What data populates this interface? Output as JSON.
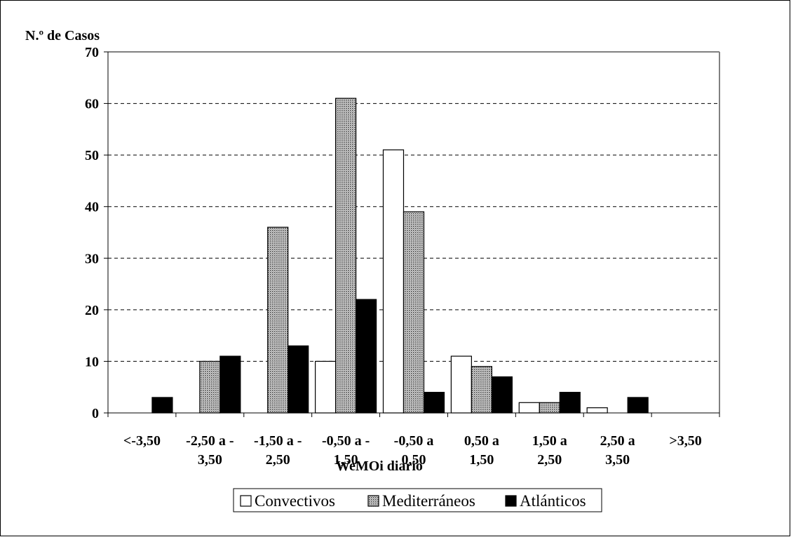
{
  "chart_data": {
    "type": "bar",
    "ylabel": "N.º de Casos",
    "xlabel": "WeMOi diario",
    "ylim": [
      0,
      70
    ],
    "yticks": [
      0,
      10,
      20,
      30,
      40,
      50,
      60,
      70
    ],
    "grid": true,
    "legend_position": "bottom",
    "categories": [
      "<-3,50",
      "-2,50 a - 3,50",
      "-1,50 a - 2,50",
      "-0,50 a - 1,50",
      "-0,50 a 0,50",
      "0,50 a 1,50",
      "1,50 a 2,50",
      "2,50 a 3,50",
      ">3,50"
    ],
    "category_lines": [
      [
        "<-3,50"
      ],
      [
        "-2,50 a -",
        "3,50"
      ],
      [
        "-1,50 a -",
        "2,50"
      ],
      [
        "-0,50 a -",
        "1,50"
      ],
      [
        "-0,50 a",
        "0,50"
      ],
      [
        "0,50 a",
        "1,50"
      ],
      [
        "1,50 a",
        "2,50"
      ],
      [
        "2,50 a",
        "3,50"
      ],
      [
        ">3,50"
      ]
    ],
    "series": [
      {
        "name": "Convectivos",
        "color": "#ffffff",
        "pattern": "none",
        "values": [
          0,
          0,
          0,
          10,
          51,
          11,
          2,
          1,
          0
        ]
      },
      {
        "name": "Mediterráneos",
        "color": "#8c8c8c",
        "pattern": "dots",
        "values": [
          0,
          10,
          36,
          61,
          39,
          9,
          2,
          0,
          0
        ]
      },
      {
        "name": "Atlánticos",
        "color": "#000000",
        "pattern": "none",
        "values": [
          3,
          11,
          13,
          22,
          4,
          7,
          4,
          3,
          0
        ]
      }
    ]
  }
}
